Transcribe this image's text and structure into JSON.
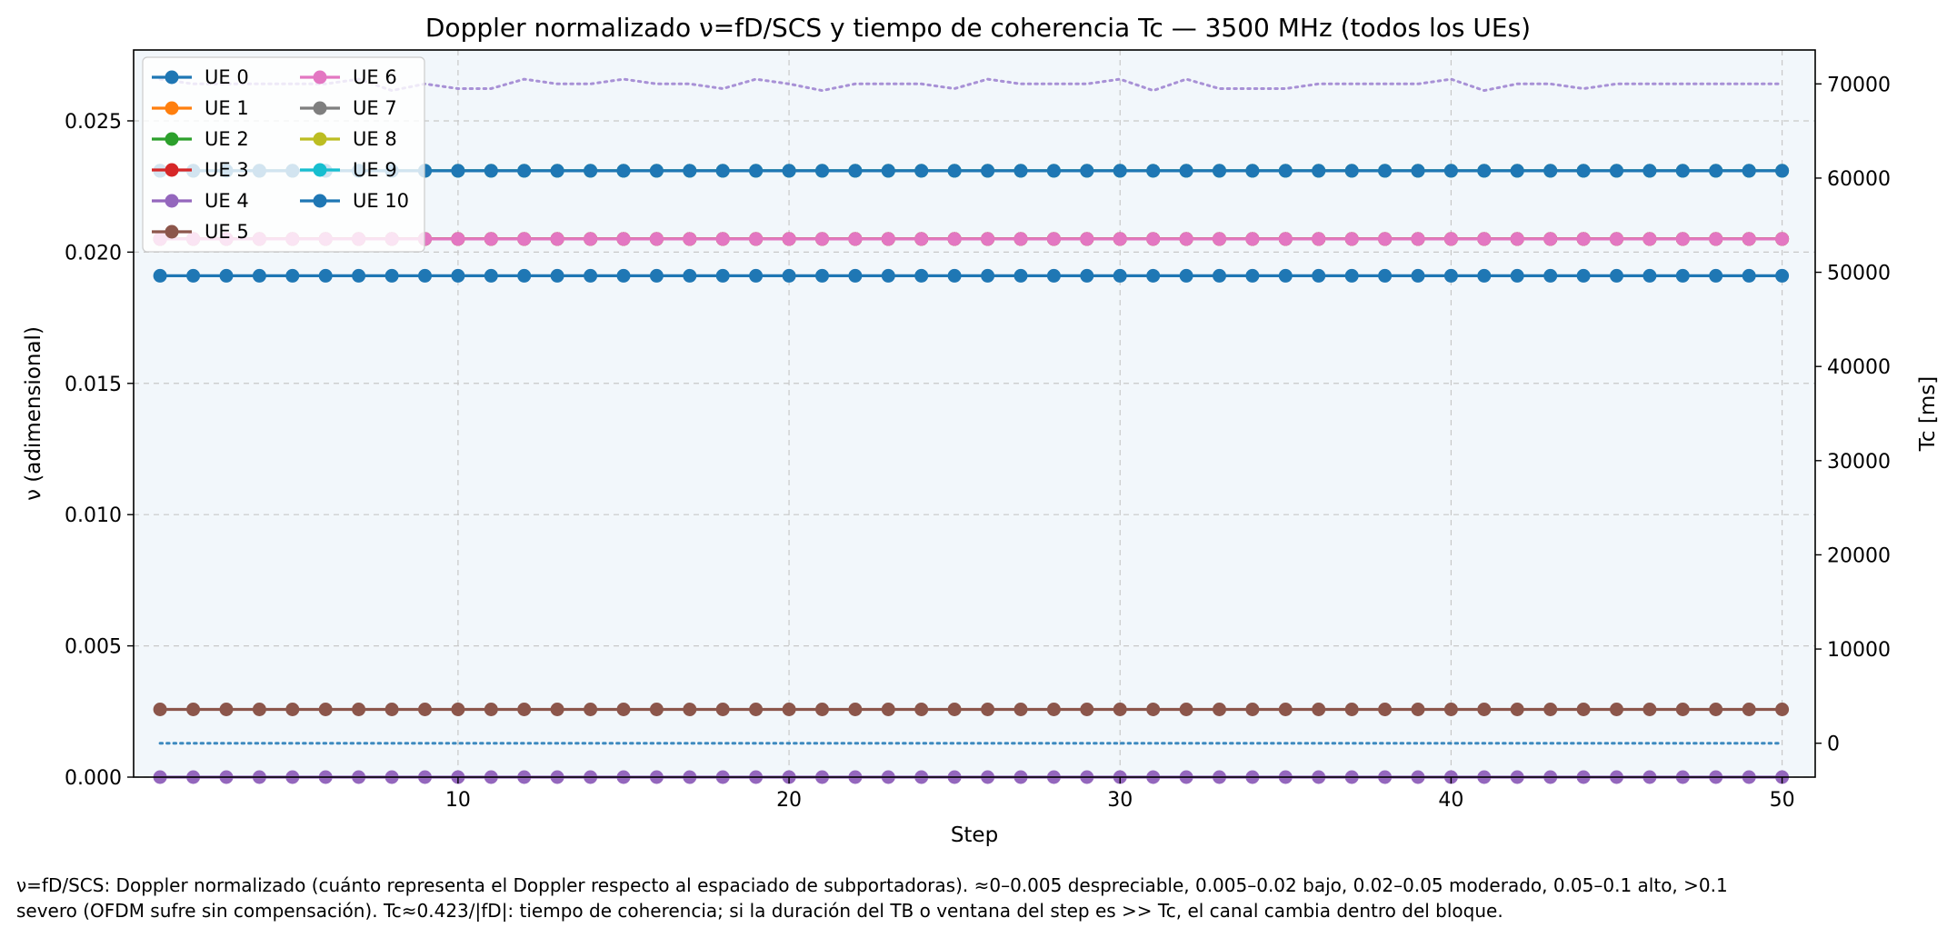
{
  "chart_data": {
    "type": "line",
    "title": "Doppler normalizado ν=fD/SCS y tiempo de coherencia Tc — 3500 MHz (todos los UEs)",
    "xlabel": "Step",
    "ylabel": "ν (adimensional)",
    "y2label": "Tc [ms]",
    "xlim": [
      0.2,
      51.0
    ],
    "ylim": [
      0,
      0.0277
    ],
    "y2lim": [
      -3600,
      73600
    ],
    "xticks": [
      10,
      20,
      30,
      40,
      50
    ],
    "xtick_labels": [
      "10",
      "20",
      "30",
      "40",
      "50"
    ],
    "yticks": [
      0.0,
      0.005,
      0.01,
      0.015,
      0.02,
      0.025
    ],
    "ytick_labels": [
      "0.000",
      "0.005",
      "0.010",
      "0.015",
      "0.020",
      "0.025"
    ],
    "y2ticks": [
      0,
      10000,
      20000,
      30000,
      40000,
      50000,
      60000,
      70000
    ],
    "y2tick_labels": [
      "0",
      "10000",
      "20000",
      "30000",
      "40000",
      "50000",
      "60000",
      "70000"
    ],
    "grid": true,
    "legend_position": "top-left",
    "x": [
      1,
      2,
      3,
      4,
      5,
      6,
      7,
      8,
      9,
      10,
      11,
      12,
      13,
      14,
      15,
      16,
      17,
      18,
      19,
      20,
      21,
      22,
      23,
      24,
      25,
      26,
      27,
      28,
      29,
      30,
      31,
      32,
      33,
      34,
      35,
      36,
      37,
      38,
      39,
      40,
      41,
      42,
      43,
      44,
      45,
      46,
      47,
      48,
      49,
      50
    ],
    "series": [
      {
        "name": "UE 0",
        "axis": "left",
        "color": "#1f77b4",
        "values": [
          0.0191,
          0.0191,
          0.0191,
          0.0191,
          0.0191,
          0.0191,
          0.0191,
          0.0191,
          0.0191,
          0.0191,
          0.0191,
          0.0191,
          0.0191,
          0.0191,
          0.0191,
          0.0191,
          0.0191,
          0.0191,
          0.0191,
          0.0191,
          0.0191,
          0.0191,
          0.0191,
          0.0191,
          0.0191,
          0.0191,
          0.0191,
          0.0191,
          0.0191,
          0.0191,
          0.0191,
          0.0191,
          0.0191,
          0.0191,
          0.0191,
          0.0191,
          0.0191,
          0.0191,
          0.0191,
          0.0191,
          0.0191,
          0.0191,
          0.0191,
          0.0191,
          0.0191,
          0.0191,
          0.0191,
          0.0191,
          0.0191,
          0.0191
        ]
      },
      {
        "name": "UE 1",
        "axis": "left",
        "color": "#ff7f0e",
        "values": [
          0.0205,
          0.0205,
          0.0205,
          0.0205,
          0.0205,
          0.0205,
          0.0205,
          0.0205,
          0.0205,
          0.0205,
          0.0205,
          0.0205,
          0.0205,
          0.0205,
          0.0205,
          0.0205,
          0.0205,
          0.0205,
          0.0205,
          0.0205,
          0.0205,
          0.0205,
          0.0205,
          0.0205,
          0.0205,
          0.0205,
          0.0205,
          0.0205,
          0.0205,
          0.0205,
          0.0205,
          0.0205,
          0.0205,
          0.0205,
          0.0205,
          0.0205,
          0.0205,
          0.0205,
          0.0205,
          0.0205,
          0.0205,
          0.0205,
          0.0205,
          0.0205,
          0.0205,
          0.0205,
          0.0205,
          0.0205,
          0.0205,
          0.0205
        ]
      },
      {
        "name": "UE 2",
        "axis": "left",
        "color": "#2ca02c",
        "values": [
          0.0205,
          0.0205,
          0.0205,
          0.0205,
          0.0205,
          0.0205,
          0.0205,
          0.0205,
          0.0205,
          0.0205,
          0.0205,
          0.0205,
          0.0205,
          0.0205,
          0.0205,
          0.0205,
          0.0205,
          0.0205,
          0.0205,
          0.0205,
          0.0205,
          0.0205,
          0.0205,
          0.0205,
          0.0205,
          0.0205,
          0.0205,
          0.0205,
          0.0205,
          0.0205,
          0.0205,
          0.0205,
          0.0205,
          0.0205,
          0.0205,
          0.0205,
          0.0205,
          0.0205,
          0.0205,
          0.0205,
          0.0205,
          0.0205,
          0.0205,
          0.0205,
          0.0205,
          0.0205,
          0.0205,
          0.0205,
          0.0205,
          0.0205
        ]
      },
      {
        "name": "UE 3",
        "axis": "left",
        "color": "#d62728",
        "values": [
          0.0205,
          0.0205,
          0.0205,
          0.0205,
          0.0205,
          0.0205,
          0.0205,
          0.0205,
          0.0205,
          0.0205,
          0.0205,
          0.0205,
          0.0205,
          0.0205,
          0.0205,
          0.0205,
          0.0205,
          0.0205,
          0.0205,
          0.0205,
          0.0205,
          0.0205,
          0.0205,
          0.0205,
          0.0205,
          0.0205,
          0.0205,
          0.0205,
          0.0205,
          0.0205,
          0.0205,
          0.0205,
          0.0205,
          0.0205,
          0.0205,
          0.0205,
          0.0205,
          0.0205,
          0.0205,
          0.0205,
          0.0205,
          0.0205,
          0.0205,
          0.0205,
          0.0205,
          0.0205,
          0.0205,
          0.0205,
          0.0205,
          0.0205
        ]
      },
      {
        "name": "UE 4",
        "axis": "left",
        "color": "#9467bd",
        "values": [
          0.0,
          0.0,
          0.0,
          0.0,
          0.0,
          0.0,
          0.0,
          0.0,
          0.0,
          0.0,
          0.0,
          0.0,
          0.0,
          0.0,
          0.0,
          0.0,
          0.0,
          0.0,
          0.0,
          0.0,
          0.0,
          0.0,
          0.0,
          0.0,
          0.0,
          0.0,
          0.0,
          0.0,
          0.0,
          0.0,
          0.0,
          0.0,
          0.0,
          0.0,
          0.0,
          0.0,
          0.0,
          0.0,
          0.0,
          0.0,
          0.0,
          0.0,
          0.0,
          0.0,
          0.0,
          0.0,
          0.0,
          0.0,
          0.0,
          0.0
        ]
      },
      {
        "name": "UE 5",
        "axis": "left",
        "color": "#8c564b",
        "values": [
          0.00258,
          0.00258,
          0.00258,
          0.00258,
          0.00258,
          0.00258,
          0.00258,
          0.00258,
          0.00258,
          0.00258,
          0.00258,
          0.00258,
          0.00258,
          0.00258,
          0.00258,
          0.00258,
          0.00258,
          0.00258,
          0.00258,
          0.00258,
          0.00258,
          0.00258,
          0.00258,
          0.00258,
          0.00258,
          0.00258,
          0.00258,
          0.00258,
          0.00258,
          0.00258,
          0.00258,
          0.00258,
          0.00258,
          0.00258,
          0.00258,
          0.00258,
          0.00258,
          0.00258,
          0.00258,
          0.00258,
          0.00258,
          0.00258,
          0.00258,
          0.00258,
          0.00258,
          0.00258,
          0.00258,
          0.00258,
          0.00258,
          0.00258
        ]
      },
      {
        "name": "UE 6",
        "axis": "left",
        "color": "#e377c2",
        "values": [
          0.0205,
          0.0205,
          0.0205,
          0.0205,
          0.0205,
          0.0205,
          0.0205,
          0.0205,
          0.0205,
          0.0205,
          0.0205,
          0.0205,
          0.0205,
          0.0205,
          0.0205,
          0.0205,
          0.0205,
          0.0205,
          0.0205,
          0.0205,
          0.0205,
          0.0205,
          0.0205,
          0.0205,
          0.0205,
          0.0205,
          0.0205,
          0.0205,
          0.0205,
          0.0205,
          0.0205,
          0.0205,
          0.0205,
          0.0205,
          0.0205,
          0.0205,
          0.0205,
          0.0205,
          0.0205,
          0.0205,
          0.0205,
          0.0205,
          0.0205,
          0.0205,
          0.0205,
          0.0205,
          0.0205,
          0.0205,
          0.0205,
          0.0205
        ]
      },
      {
        "name": "UE 7",
        "axis": "left",
        "color": "#7f7f7f",
        "values": [
          0.0231,
          0.0231,
          0.0231,
          0.0231,
          0.0231,
          0.0231,
          0.0231,
          0.0231,
          0.0231,
          0.0231,
          0.0231,
          0.0231,
          0.0231,
          0.0231,
          0.0231,
          0.0231,
          0.0231,
          0.0231,
          0.0231,
          0.0231,
          0.0231,
          0.0231,
          0.0231,
          0.0231,
          0.0231,
          0.0231,
          0.0231,
          0.0231,
          0.0231,
          0.0231,
          0.0231,
          0.0231,
          0.0231,
          0.0231,
          0.0231,
          0.0231,
          0.0231,
          0.0231,
          0.0231,
          0.0231,
          0.0231,
          0.0231,
          0.0231,
          0.0231,
          0.0231,
          0.0231,
          0.0231,
          0.0231,
          0.0231,
          0.0231
        ]
      },
      {
        "name": "UE 8",
        "axis": "left",
        "color": "#bcbd22",
        "values": [
          0.0231,
          0.0231,
          0.0231,
          0.0231,
          0.0231,
          0.0231,
          0.0231,
          0.0231,
          0.0231,
          0.0231,
          0.0231,
          0.0231,
          0.0231,
          0.0231,
          0.0231,
          0.0231,
          0.0231,
          0.0231,
          0.0231,
          0.0231,
          0.0231,
          0.0231,
          0.0231,
          0.0231,
          0.0231,
          0.0231,
          0.0231,
          0.0231,
          0.0231,
          0.0231,
          0.0231,
          0.0231,
          0.0231,
          0.0231,
          0.0231,
          0.0231,
          0.0231,
          0.0231,
          0.0231,
          0.0231,
          0.0231,
          0.0231,
          0.0231,
          0.0231,
          0.0231,
          0.0231,
          0.0231,
          0.0231,
          0.0231,
          0.0231
        ]
      },
      {
        "name": "UE 9",
        "axis": "left",
        "color": "#17becf",
        "values": [
          0.0231,
          0.0231,
          0.0231,
          0.0231,
          0.0231,
          0.0231,
          0.0231,
          0.0231,
          0.0231,
          0.0231,
          0.0231,
          0.0231,
          0.0231,
          0.0231,
          0.0231,
          0.0231,
          0.0231,
          0.0231,
          0.0231,
          0.0231,
          0.0231,
          0.0231,
          0.0231,
          0.0231,
          0.0231,
          0.0231,
          0.0231,
          0.0231,
          0.0231,
          0.0231,
          0.0231,
          0.0231,
          0.0231,
          0.0231,
          0.0231,
          0.0231,
          0.0231,
          0.0231,
          0.0231,
          0.0231,
          0.0231,
          0.0231,
          0.0231,
          0.0231,
          0.0231,
          0.0231,
          0.0231,
          0.0231,
          0.0231,
          0.0231
        ]
      },
      {
        "name": "UE 10",
        "axis": "left",
        "color": "#1f77b4",
        "values": [
          0.0231,
          0.0231,
          0.0231,
          0.0231,
          0.0231,
          0.0231,
          0.0231,
          0.0231,
          0.0231,
          0.0231,
          0.0231,
          0.0231,
          0.0231,
          0.0231,
          0.0231,
          0.0231,
          0.0231,
          0.0231,
          0.0231,
          0.0231,
          0.0231,
          0.0231,
          0.0231,
          0.0231,
          0.0231,
          0.0231,
          0.0231,
          0.0231,
          0.0231,
          0.0231,
          0.0231,
          0.0231,
          0.0231,
          0.0231,
          0.0231,
          0.0231,
          0.0231,
          0.0231,
          0.0231,
          0.0231,
          0.0231,
          0.0231,
          0.0231,
          0.0231,
          0.0231,
          0.0231,
          0.0231,
          0.0231,
          0.0231,
          0.0231
        ]
      }
    ],
    "tc_series": [
      {
        "axis": "right",
        "style": "dotted",
        "color": "#9b7fcf",
        "values": [
          70500,
          70000,
          70000,
          70000,
          70000,
          70000,
          70500,
          69300,
          70000,
          69500,
          69500,
          70500,
          70000,
          70000,
          70500,
          70000,
          70000,
          69500,
          70500,
          70000,
          69300,
          70000,
          70000,
          70000,
          69500,
          70500,
          70000,
          70000,
          70000,
          70500,
          69300,
          70500,
          69500,
          69500,
          69500,
          70000,
          70000,
          70000,
          70000,
          70500,
          69300,
          70000,
          70000,
          69500,
          70000,
          70000,
          70000,
          70000,
          70000,
          70000
        ]
      },
      {
        "axis": "right",
        "style": "dotted",
        "color": "#1f77b4",
        "values": [
          0,
          0,
          0,
          0,
          0,
          0,
          0,
          0,
          0,
          0,
          0,
          0,
          0,
          0,
          0,
          0,
          0,
          0,
          0,
          0,
          0,
          0,
          0,
          0,
          0,
          0,
          0,
          0,
          0,
          0,
          0,
          0,
          0,
          0,
          0,
          0,
          0,
          0,
          0,
          0,
          0,
          0,
          0,
          0,
          0,
          0,
          0,
          0,
          0,
          0
        ]
      }
    ]
  },
  "footnote": {
    "line1": "ν=fD/SCS: Doppler normalizado (cuánto representa el Doppler respecto al espaciado de subportadoras). ≈0–0.005 despreciable, 0.005–0.02 bajo, 0.02–0.05 moderado, 0.05–0.1 alto, >0.1",
    "line2": "severo (OFDM sufre sin compensación). Tc≈0.423/|fD|: tiempo de coherencia; si la duración del TB o ventana del step es >> Tc, el canal cambia dentro del bloque."
  }
}
